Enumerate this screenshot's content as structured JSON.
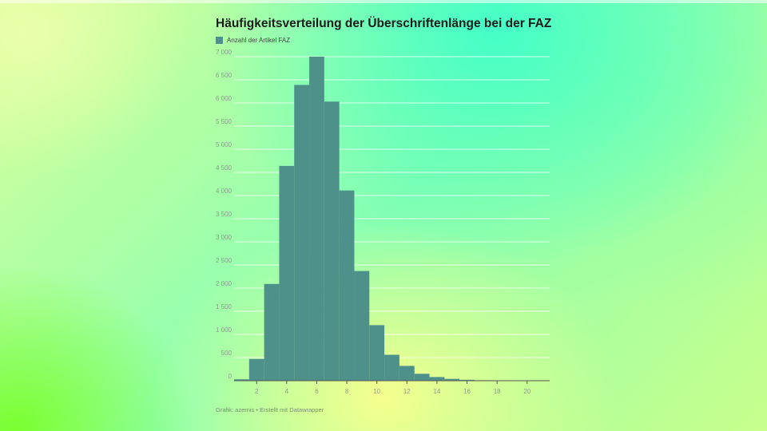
{
  "header": {
    "title": "Häufigkeitsverteilung der Überschriftenlänge bei der FAZ"
  },
  "footer": {
    "credit": "Grafik: azernis • Erstellt mit Datawrapper"
  },
  "colors": {
    "bar": "#4e918a",
    "grid": "#ffffff",
    "axis": "#555555"
  },
  "chart_data": {
    "type": "bar",
    "title": "Häufigkeitsverteilung der Überschriftenlänge bei der FAZ",
    "legend": {
      "placement": "top-left",
      "entries": [
        "Anzahl der Artikel FAZ"
      ]
    },
    "grid": true,
    "xlim": [
      0.5,
      21.5
    ],
    "ylim": [
      0,
      7000
    ],
    "x_ticks": [
      2,
      4,
      6,
      8,
      10,
      12,
      14,
      16,
      18,
      20
    ],
    "x_tick_labels": [
      "2",
      "4",
      "6",
      "8",
      "10",
      "12",
      "14",
      "16",
      "18",
      "20"
    ],
    "y_ticks": [
      0,
      500,
      1000,
      1500,
      2000,
      2500,
      3000,
      3500,
      4000,
      4500,
      5000,
      5500,
      6000,
      6500,
      7000
    ],
    "y_tick_labels": [
      "0",
      "500",
      "1 000",
      "1 500",
      "2 000",
      "2 500",
      "3 000",
      "3 500",
      "4 000",
      "4 500",
      "5 000",
      "5 500",
      "6 000",
      "6 500",
      "7 000"
    ],
    "series": [
      {
        "name": "Anzahl der Artikel FAZ",
        "x": [
          1,
          2,
          3,
          4,
          5,
          6,
          7,
          8,
          9,
          10,
          11,
          12,
          13,
          14,
          15,
          16,
          17,
          18,
          19,
          20,
          21
        ],
        "values": [
          30,
          470,
          2090,
          4640,
          6390,
          7000,
          6030,
          4110,
          2370,
          1200,
          560,
          320,
          150,
          80,
          40,
          20,
          10,
          5,
          5,
          2,
          1
        ]
      }
    ]
  }
}
